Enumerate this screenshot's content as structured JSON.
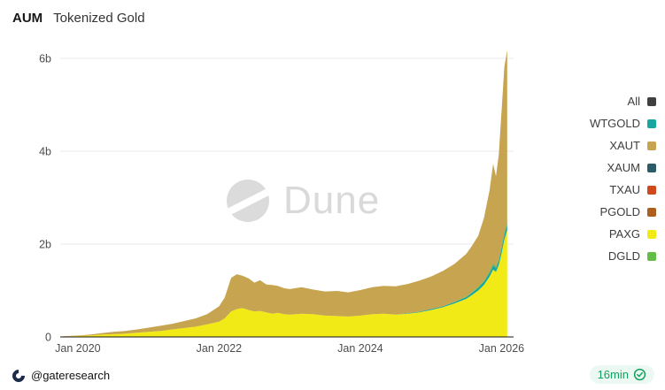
{
  "header": {
    "title_bold": "AUM",
    "title_rest": "Tokenized Gold"
  },
  "watermark": {
    "text": "Dune"
  },
  "footer": {
    "author_handle": "@gateresearch",
    "refresh_age": "16min"
  },
  "colors": {
    "background": "#ffffff",
    "grid": "#e9e9e9",
    "axis": "#161616",
    "tick_text": "#4d4d4d",
    "watermark": "#d9d9d9",
    "refresh_green": "#14a05f"
  },
  "chart_data": {
    "type": "area",
    "stacked": true,
    "title": "AUM Tokenized Gold",
    "xlabel": "",
    "ylabel": "",
    "grid": "horizontal",
    "legend_position": "right",
    "xlim": [
      2019.75,
      2026.17
    ],
    "ylim": [
      0,
      6.3
    ],
    "xticks": [
      {
        "v": 2020,
        "label": "Jan 2020"
      },
      {
        "v": 2022,
        "label": "Jan 2022"
      },
      {
        "v": 2024,
        "label": "Jan 2024"
      },
      {
        "v": 2026,
        "label": "Jan 2026"
      }
    ],
    "yticks": [
      {
        "v": 0,
        "label": "0"
      },
      {
        "v": 2,
        "label": "2b"
      },
      {
        "v": 4,
        "label": "4b"
      },
      {
        "v": 6,
        "label": "6b"
      }
    ],
    "x": [
      2019.79,
      2020.0,
      2020.17,
      2020.33,
      2020.5,
      2020.67,
      2020.83,
      2021.0,
      2021.17,
      2021.33,
      2021.5,
      2021.67,
      2021.83,
      2022.0,
      2022.08,
      2022.17,
      2022.25,
      2022.33,
      2022.42,
      2022.5,
      2022.58,
      2022.67,
      2022.75,
      2022.83,
      2022.92,
      2023.0,
      2023.17,
      2023.33,
      2023.5,
      2023.67,
      2023.83,
      2024.0,
      2024.17,
      2024.33,
      2024.5,
      2024.67,
      2024.83,
      2025.0,
      2025.17,
      2025.33,
      2025.5,
      2025.58,
      2025.67,
      2025.75,
      2025.83,
      2025.88,
      2025.92,
      2025.96,
      2026.0,
      2026.04,
      2026.08
    ],
    "series": [
      {
        "name": "PAXG",
        "color": "#f2ea16",
        "values": [
          0.01,
          0.02,
          0.03,
          0.05,
          0.06,
          0.07,
          0.09,
          0.11,
          0.13,
          0.16,
          0.19,
          0.22,
          0.27,
          0.33,
          0.4,
          0.55,
          0.6,
          0.62,
          0.58,
          0.55,
          0.56,
          0.53,
          0.5,
          0.52,
          0.49,
          0.48,
          0.5,
          0.49,
          0.46,
          0.45,
          0.44,
          0.46,
          0.49,
          0.5,
          0.48,
          0.5,
          0.53,
          0.58,
          0.64,
          0.72,
          0.82,
          0.9,
          1.0,
          1.12,
          1.3,
          1.45,
          1.4,
          1.55,
          1.8,
          2.1,
          2.3
        ]
      },
      {
        "name": "WTGOLD",
        "color": "#18a7a0",
        "values": [
          0,
          0,
          0,
          0,
          0,
          0,
          0,
          0,
          0,
          0,
          0,
          0,
          0,
          0,
          0,
          0,
          0,
          0,
          0,
          0,
          0,
          0,
          0,
          0,
          0,
          0,
          0,
          0,
          0,
          0,
          0,
          0,
          0,
          0,
          0,
          0.01,
          0.01,
          0.02,
          0.02,
          0.03,
          0.04,
          0.05,
          0.06,
          0.07,
          0.08,
          0.09,
          0.08,
          0.09,
          0.1,
          0.11,
          0.12
        ]
      },
      {
        "name": "DGLD",
        "color": "#63bd46",
        "values": [
          0,
          0,
          0,
          0,
          0,
          0,
          0,
          0,
          0,
          0,
          0,
          0,
          0,
          0,
          0,
          0,
          0,
          0,
          0,
          0,
          0,
          0,
          0,
          0,
          0,
          0,
          0,
          0,
          0,
          0,
          0,
          0,
          0,
          0,
          0,
          0,
          0,
          0,
          0,
          0,
          0.01,
          0.01,
          0.02,
          0.02,
          0.02,
          0.03,
          0.02,
          0.03,
          0.03,
          0.03,
          0.03
        ]
      },
      {
        "name": "XAUM",
        "color": "#2a5b66",
        "values": [
          0,
          0,
          0,
          0,
          0,
          0,
          0,
          0,
          0,
          0,
          0,
          0,
          0,
          0,
          0,
          0,
          0,
          0,
          0,
          0,
          0,
          0,
          0,
          0,
          0,
          0,
          0,
          0,
          0,
          0,
          0,
          0,
          0,
          0,
          0,
          0,
          0,
          0,
          0,
          0,
          0,
          0,
          0,
          0,
          0.01,
          0.01,
          0.01,
          0.01,
          0.01,
          0.01,
          0.01
        ]
      },
      {
        "name": "TXAU",
        "color": "#d0491d",
        "values": [
          0,
          0,
          0,
          0,
          0,
          0,
          0,
          0,
          0,
          0,
          0,
          0,
          0,
          0,
          0,
          0,
          0,
          0,
          0,
          0,
          0,
          0,
          0,
          0,
          0,
          0,
          0,
          0,
          0,
          0,
          0,
          0,
          0,
          0,
          0,
          0,
          0,
          0,
          0,
          0,
          0,
          0,
          0,
          0,
          0,
          0,
          0,
          0,
          0.01,
          0.01,
          0.01
        ]
      },
      {
        "name": "PGOLD",
        "color": "#ad5f1e",
        "values": [
          0,
          0,
          0,
          0,
          0,
          0,
          0,
          0,
          0,
          0,
          0,
          0,
          0,
          0,
          0,
          0,
          0,
          0,
          0,
          0,
          0,
          0,
          0,
          0,
          0,
          0,
          0,
          0,
          0,
          0,
          0,
          0,
          0,
          0,
          0,
          0,
          0,
          0,
          0,
          0,
          0,
          0,
          0,
          0,
          0,
          0,
          0,
          0,
          0.01,
          0.01,
          0.01
        ]
      },
      {
        "name": "XAUT",
        "color": "#c7a44f",
        "values": [
          0.005,
          0.01,
          0.02,
          0.03,
          0.05,
          0.06,
          0.07,
          0.09,
          0.11,
          0.12,
          0.15,
          0.18,
          0.22,
          0.33,
          0.45,
          0.72,
          0.75,
          0.7,
          0.68,
          0.62,
          0.66,
          0.6,
          0.62,
          0.58,
          0.56,
          0.55,
          0.57,
          0.53,
          0.52,
          0.54,
          0.52,
          0.55,
          0.58,
          0.6,
          0.61,
          0.63,
          0.67,
          0.7,
          0.76,
          0.82,
          0.92,
          1.0,
          1.1,
          1.35,
          1.75,
          2.15,
          1.95,
          2.25,
          2.9,
          3.55,
          3.7
        ]
      }
    ],
    "legend": [
      {
        "label": "All",
        "color": "#3f3f3f"
      },
      {
        "label": "WTGOLD",
        "color": "#18a7a0"
      },
      {
        "label": "XAUT",
        "color": "#c7a44f"
      },
      {
        "label": "XAUM",
        "color": "#2a5b66"
      },
      {
        "label": "TXAU",
        "color": "#d0491d"
      },
      {
        "label": "PGOLD",
        "color": "#ad5f1e"
      },
      {
        "label": "PAXG",
        "color": "#f2ea16"
      },
      {
        "label": "DGLD",
        "color": "#63bd46"
      }
    ]
  }
}
